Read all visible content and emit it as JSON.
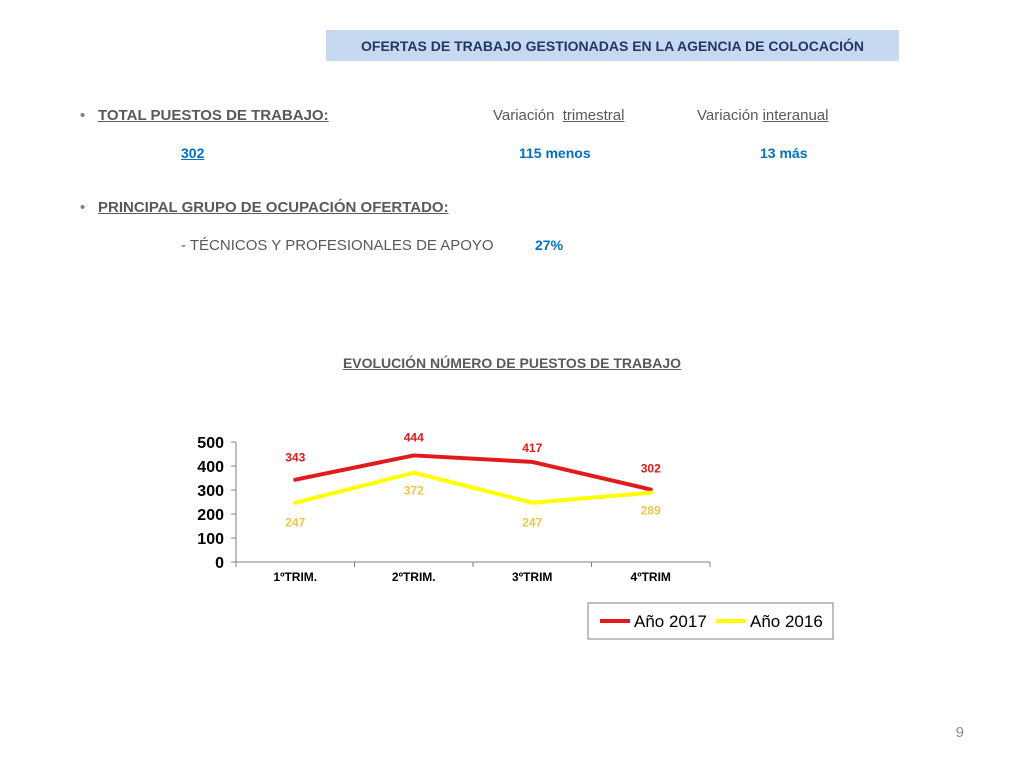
{
  "header": {
    "title": "OFERTAS DE TRABAJO GESTIONADAS EN LA AGENCIA DE COLOCACIÓN"
  },
  "total": {
    "label": "TOTAL PUESTOS DE TRABAJO:",
    "variation_q_word": "Variación",
    "variation_q_kind": "trimestral",
    "variation_y_word": "Variación",
    "variation_y_kind": "interanual",
    "value": "302",
    "variation_q_value": "115 menos",
    "variation_y_value": "13  más"
  },
  "group": {
    "label": "PRINCIPAL  GRUPO DE OCUPACIÓN OFERTADO:",
    "item": "- TÉCNICOS Y PROFESIONALES DE APOYO",
    "percent": "27%"
  },
  "colors": {
    "series_2017": "#e31a1c",
    "series_2016": "#ffff00",
    "label_2016": "#e6c84a",
    "accent": "#0070c0"
  },
  "chart_data": {
    "type": "line",
    "title": "EVOLUCIÓN NÚMERO DE PUESTOS DE TRABAJO",
    "categories": [
      "1ºTRIM.",
      "2ºTRIM.",
      "3ºTRIM",
      "4ºTRIM"
    ],
    "series": [
      {
        "name": "Año 2017",
        "values": [
          343,
          444,
          417,
          302
        ]
      },
      {
        "name": "Año 2016",
        "values": [
          247,
          372,
          247,
          289
        ]
      }
    ],
    "yticks": [
      "0",
      "100",
      "200",
      "300",
      "400",
      "500"
    ],
    "ylim": [
      0,
      500
    ],
    "grid": false,
    "legend": "bottom-right"
  },
  "page_number": "9"
}
